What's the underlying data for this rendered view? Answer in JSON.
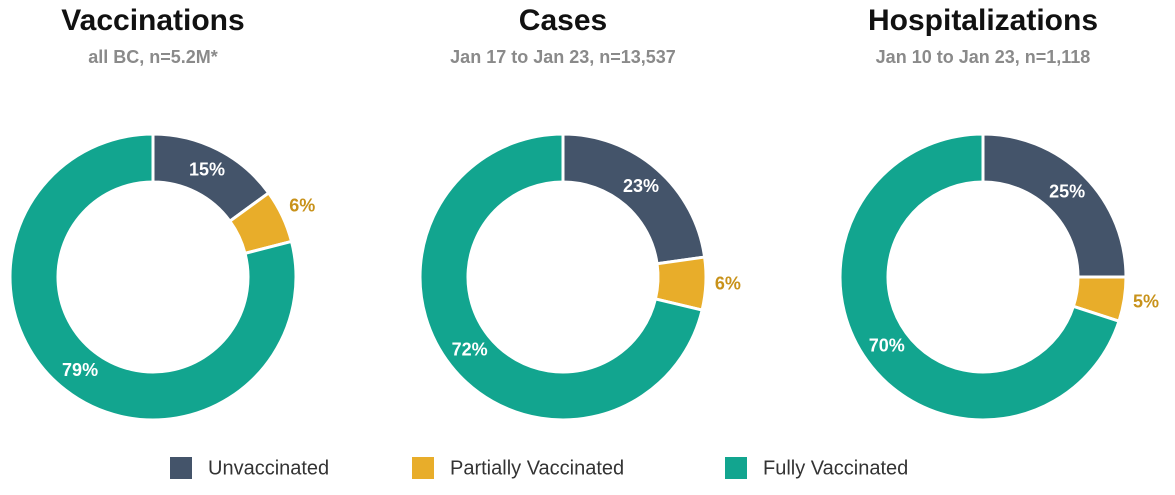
{
  "chart_data": [
    {
      "type": "pie",
      "title": "Vaccinations",
      "subtitle": "all BC, n=5.2M*",
      "categories": [
        "Unvaccinated",
        "Partially Vaccinated",
        "Fully Vaccinated"
      ],
      "values": [
        15,
        6,
        79
      ],
      "value_labels": [
        "15%",
        "6%",
        "79%"
      ],
      "colors": [
        "#44546a",
        "#e8ad2a",
        "#12a58f"
      ]
    },
    {
      "type": "pie",
      "title": "Cases",
      "subtitle": "Jan 17 to Jan 23, n=13,537",
      "categories": [
        "Unvaccinated",
        "Partially Vaccinated",
        "Fully Vaccinated"
      ],
      "values": [
        23,
        6,
        72
      ],
      "value_labels": [
        "23%",
        "6%",
        "72%"
      ],
      "colors": [
        "#44546a",
        "#e8ad2a",
        "#12a58f"
      ]
    },
    {
      "type": "pie",
      "title": "Hospitalizations",
      "subtitle": "Jan 10 to Jan 23, n=1,118",
      "categories": [
        "Unvaccinated",
        "Partially Vaccinated",
        "Fully Vaccinated"
      ],
      "values": [
        25,
        5,
        70
      ],
      "value_labels": [
        "25%",
        "5%",
        "70%"
      ],
      "colors": [
        "#44546a",
        "#e8ad2a",
        "#12a58f"
      ]
    }
  ]
}
